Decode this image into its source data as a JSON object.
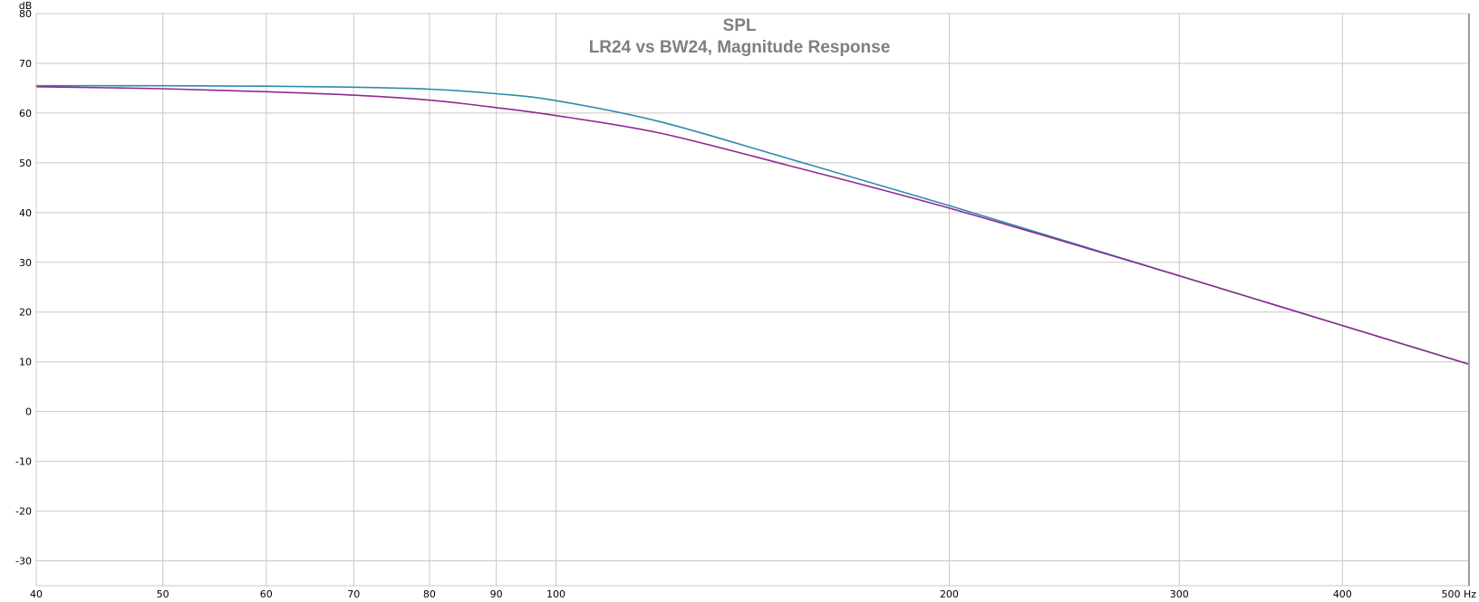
{
  "chart_data": {
    "type": "line",
    "title": "SPL",
    "subtitle": "LR24 vs BW24, Magnitude Response",
    "y_unit": "dB",
    "x_unit": "Hz",
    "x_scale": "log",
    "xlim": [
      40,
      500
    ],
    "ylim": [
      -35,
      80
    ],
    "x_ticks": [
      40,
      50,
      60,
      70,
      80,
      90,
      100,
      200,
      300,
      400,
      500
    ],
    "x_tick_labels": [
      "40",
      "50",
      "60",
      "70",
      "80",
      "90",
      "100",
      "200",
      "300",
      "400",
      "500 Hz"
    ],
    "y_ticks": [
      80,
      70,
      60,
      50,
      40,
      30,
      20,
      10,
      0,
      -10,
      -20,
      -30
    ],
    "y_tick_labels": [
      "80",
      "70",
      "60",
      "50",
      "40",
      "30",
      "20",
      "10",
      "0",
      "-10",
      "-20",
      "-30"
    ],
    "grid": true,
    "series": [
      {
        "color": "#2e8bab",
        "x": [
          40,
          50,
          60,
          70,
          80,
          90,
          100,
          120,
          150,
          200,
          300,
          400,
          500
        ],
        "y": [
          65.5,
          65.5,
          65.4,
          65.2,
          64.8,
          63.9,
          62.5,
          58.3,
          51.0,
          41.4,
          27.3,
          17.3,
          9.5
        ]
      },
      {
        "color": "#8e2a8e",
        "x": [
          40,
          50,
          60,
          70,
          80,
          90,
          100,
          120,
          150,
          200,
          300,
          400,
          500
        ],
        "y": [
          65.3,
          64.9,
          64.3,
          63.6,
          62.6,
          61.1,
          59.5,
          56.0,
          49.6,
          40.9,
          27.3,
          17.3,
          9.5
        ]
      }
    ]
  }
}
